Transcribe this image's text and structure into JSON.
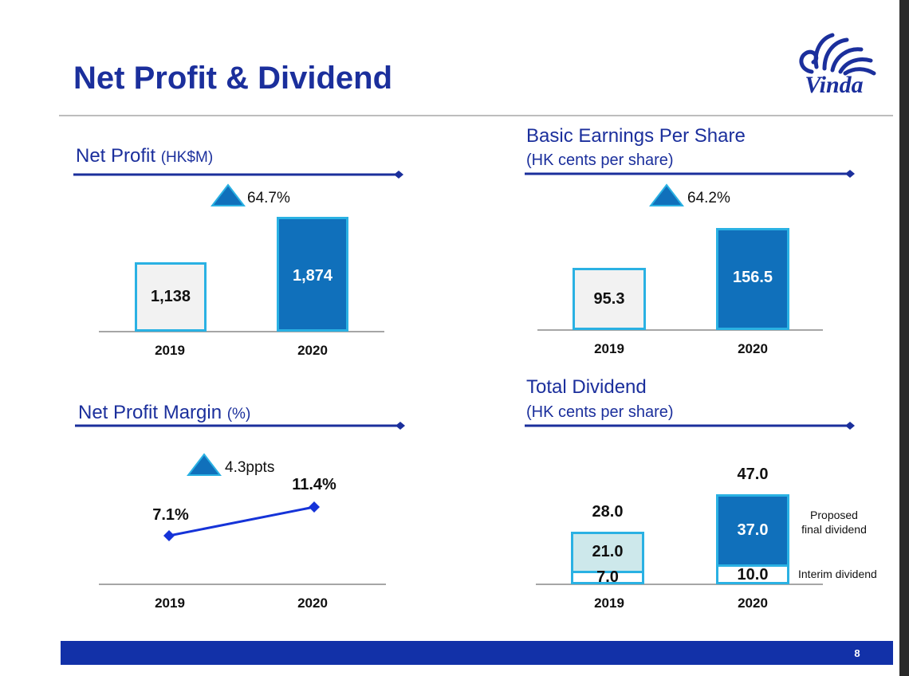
{
  "slide": {
    "title": "Net Profit & Dividend",
    "logo_text": "Vinda",
    "page_number": "8"
  },
  "colors": {
    "title_blue": "#1b2f9c",
    "bar_dark": "#1070bb",
    "bar_border": "#2ab1e3",
    "line_blue": "#1533d8",
    "footer_blue": "#1231a8"
  },
  "sections": {
    "net_profit": {
      "title": "Net Profit",
      "unit": "(HK$M)",
      "growth": "64.7%"
    },
    "eps": {
      "title": "Basic Earnings Per Share",
      "subtitle": "(HK cents per share)",
      "growth": "64.2%"
    },
    "margin": {
      "title": "Net Profit Margin",
      "unit": "(%)",
      "growth": "4.3ppts"
    },
    "dividend": {
      "title": "Total Dividend",
      "subtitle": "(HK cents per share)"
    }
  },
  "chart_data": [
    {
      "type": "bar",
      "title": "Net Profit (HK$M)",
      "categories": [
        "2019",
        "2020"
      ],
      "values": [
        1138,
        1874
      ],
      "labels": [
        "1,138",
        "1,874"
      ],
      "growth_label": "64.7%"
    },
    {
      "type": "bar",
      "title": "Basic Earnings Per Share (HK cents per share)",
      "categories": [
        "2019",
        "2020"
      ],
      "values": [
        95.3,
        156.5
      ],
      "labels": [
        "95.3",
        "156.5"
      ],
      "growth_label": "64.2%"
    },
    {
      "type": "line",
      "title": "Net Profit Margin (%)",
      "categories": [
        "2019",
        "2020"
      ],
      "values": [
        7.1,
        11.4
      ],
      "labels": [
        "7.1%",
        "11.4%"
      ],
      "growth_label": "4.3ppts"
    },
    {
      "type": "bar",
      "stacked": true,
      "title": "Total Dividend (HK cents per share)",
      "categories": [
        "2019",
        "2020"
      ],
      "series": [
        {
          "name": "Interim dividend",
          "values": [
            7.0,
            10.0
          ],
          "labels": [
            "7.0",
            "10.0"
          ]
        },
        {
          "name": "Proposed final dividend",
          "values": [
            21.0,
            37.0
          ],
          "labels": [
            "21.0",
            "37.0"
          ]
        }
      ],
      "totals": [
        28.0,
        47.0
      ],
      "total_labels": [
        "28.0",
        "47.0"
      ],
      "legend": {
        "final": "Proposed\nfinal dividend",
        "interim": "Interim dividend"
      }
    }
  ]
}
